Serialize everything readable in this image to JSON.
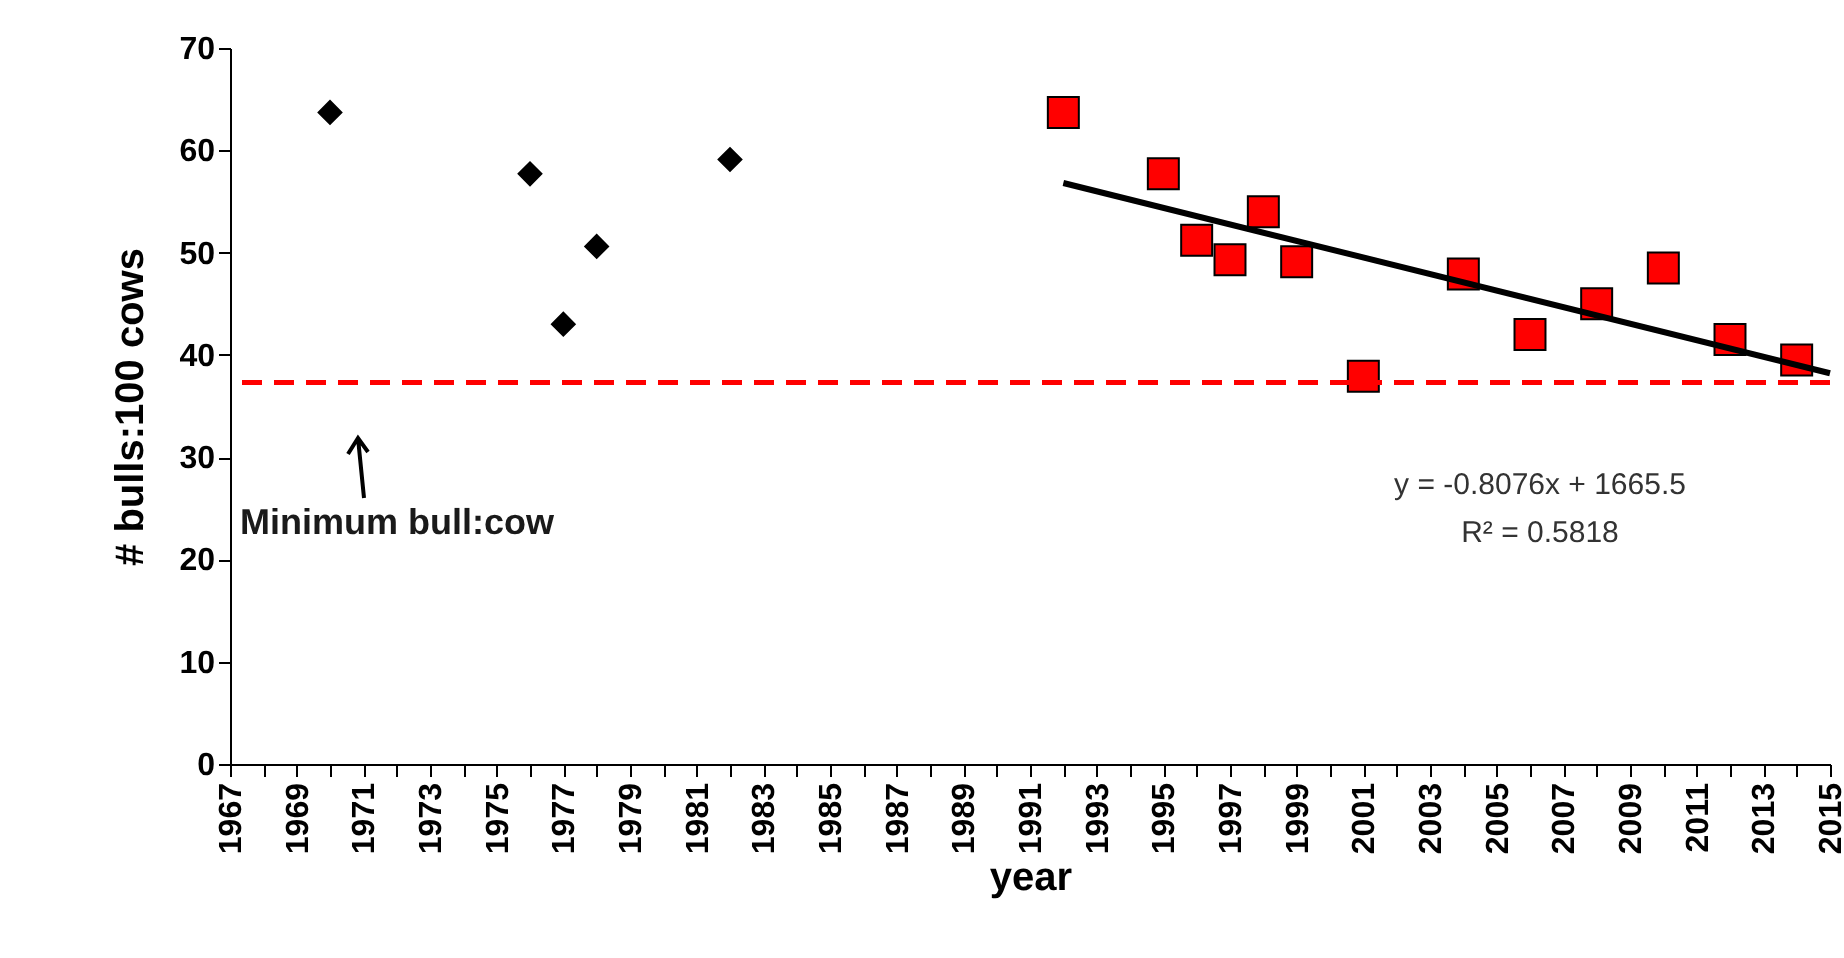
{
  "chart_data": {
    "type": "scatter",
    "xlabel": "year",
    "ylabel": "# bulls:100 cows",
    "xlim": [
      1967,
      2015
    ],
    "ylim": [
      0,
      70
    ],
    "xticks": [
      1967,
      {
        "value": 1968,
        "label": null
      },
      1969,
      {
        "value": 1970,
        "label": null
      },
      1971,
      {
        "value": 1972,
        "label": null
      },
      1973,
      {
        "value": 1974,
        "label": null
      },
      1975,
      {
        "value": 1976,
        "label": null
      },
      1977,
      {
        "value": 1978,
        "label": null
      },
      1979,
      {
        "value": 1980,
        "label": null
      },
      1981,
      {
        "value": 1982,
        "label": null
      },
      1983,
      {
        "value": 1984,
        "label": null
      },
      1985,
      {
        "value": 1986,
        "label": null
      },
      1987,
      {
        "value": 1988,
        "label": null
      },
      1989,
      {
        "value": 1990,
        "label": null
      },
      1991,
      {
        "value": 1992,
        "label": null
      },
      1993,
      {
        "value": 1994,
        "label": null
      },
      1995,
      {
        "value": 1996,
        "label": null
      },
      1997,
      {
        "value": 1998,
        "label": null
      },
      1999,
      {
        "value": 2000,
        "label": null
      },
      2001,
      {
        "value": 2002,
        "label": null
      },
      2003,
      {
        "value": 2004,
        "label": null
      },
      2005,
      {
        "value": 2006,
        "label": null
      },
      2007,
      {
        "value": 2008,
        "label": null
      },
      2009,
      {
        "value": 2010,
        "label": null
      },
      2011,
      {
        "value": 2012,
        "label": null
      },
      2013,
      {
        "value": 2014,
        "label": null
      },
      2015
    ],
    "yticks": [
      0,
      10,
      20,
      30,
      40,
      50,
      60,
      70
    ],
    "grid": false,
    "series": [
      {
        "type": "scatter",
        "marker": "diamond",
        "color": "#000000",
        "x": [
          1970,
          1976,
          1977,
          1978,
          1982
        ],
        "values": [
          63.7,
          57.7,
          43.0,
          50.6,
          59.1
        ]
      },
      {
        "type": "scatter",
        "marker": "square",
        "color": "#ff0000",
        "x": [
          1992,
          1995,
          1996,
          1997,
          1998,
          1999,
          2001,
          2004,
          2006,
          2008,
          2010,
          2012,
          2014
        ],
        "values": [
          63.7,
          57.7,
          51.2,
          49.3,
          54.0,
          49.1,
          37.9,
          47.9,
          42.0,
          45.0,
          48.5,
          41.5,
          39.5
        ]
      },
      {
        "type": "line",
        "line_style": "solid",
        "color": "#000000",
        "x": [
          1992,
          2015
        ],
        "values": [
          56.8,
          38.2
        ]
      }
    ],
    "ref_lines": [
      {
        "axis": "y",
        "value": 37.3,
        "color": "#ff0000",
        "line_style": "dashed"
      }
    ],
    "annotations": [
      "Minimum bull:cow",
      "y = -0.8076x + 1665.5",
      "R² = 0.5818"
    ]
  }
}
